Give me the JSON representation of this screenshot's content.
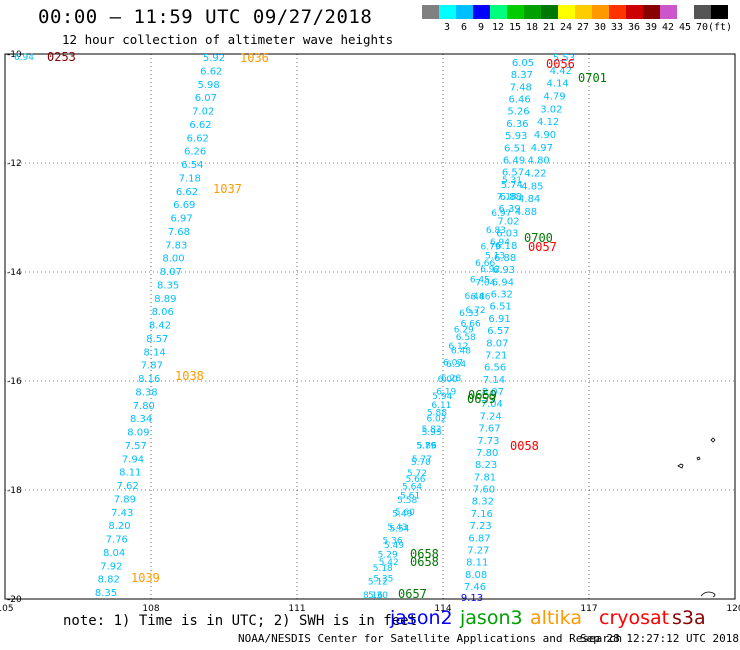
{
  "header": {
    "title": "00:00 – 11:59 UTC 09/27/2018",
    "subtitle": "12 hour collection of altimeter wave heights"
  },
  "legend": {
    "unit": "(ft)",
    "swatches": [
      {
        "color": "#808080",
        "label": ""
      },
      {
        "color": "#00ffff",
        "label": "3"
      },
      {
        "color": "#00bfff",
        "label": "6"
      },
      {
        "color": "#0000ff",
        "label": "9"
      },
      {
        "color": "#00ff7f",
        "label": "12"
      },
      {
        "color": "#00cc00",
        "label": "15"
      },
      {
        "color": "#00a000",
        "label": "18"
      },
      {
        "color": "#007700",
        "label": "21"
      },
      {
        "color": "#ffff00",
        "label": "24"
      },
      {
        "color": "#ffcc00",
        "label": "27"
      },
      {
        "color": "#ff9900",
        "label": "30"
      },
      {
        "color": "#ff3300",
        "label": "33"
      },
      {
        "color": "#cc0000",
        "label": "36"
      },
      {
        "color": "#880000",
        "label": "39"
      },
      {
        "color": "#cc55cc",
        "label": "42"
      },
      {
        "color": "#ffffff",
        "label": "45"
      },
      {
        "color": "#555555",
        "label": "70"
      },
      {
        "color": "#000000",
        "label": ""
      }
    ]
  },
  "map": {
    "lat_labels": [
      "-10",
      "-12",
      "-14",
      "-16",
      "-18",
      "-20"
    ],
    "lon_labels": [
      "105",
      "108",
      "111",
      "114",
      "117",
      "120"
    ]
  },
  "tracks": {
    "track_a": {
      "color": "#00bfff",
      "values": [
        "5.92",
        "6.62",
        "5.98",
        "6.07",
        "7.02",
        "6.62",
        "6.62",
        "6.26",
        "6.54",
        "7.18",
        "6.62",
        "6.69",
        "6.97",
        "7.68",
        "7.83",
        "8.00",
        "8.07",
        "8.35",
        "8.89",
        "8.06",
        "8.42",
        "8.57",
        "8.14",
        "7.87",
        "8.16",
        "8.38",
        "7.80",
        "8.34",
        "8.09",
        "7.57",
        "7.94",
        "8.11",
        "7.62",
        "7.89",
        "7.43",
        "8.20",
        "7.76",
        "8.04",
        "7.92",
        "8.82",
        "8.35"
      ]
    },
    "track_b": {
      "color": "#00bfff",
      "values": [
        "6.05",
        "8.37",
        "7.48",
        "6.46",
        "5.26",
        "6.36",
        "5.93",
        "6.51",
        "6.49",
        "6.57",
        "5.74",
        "6.88",
        "6.39",
        "7.02",
        "6.03",
        "6.18",
        "6.88",
        "6.93",
        "6.94",
        "6.32",
        "6.51",
        "6.91",
        "6.57",
        "8.07",
        "7.21",
        "6.56",
        "7.14",
        "8.07",
        "7.04",
        "7.24",
        "7.67",
        "7.73",
        "7.80",
        "8.23",
        "7.81",
        "7.60",
        "8.32",
        "7.16",
        "7.23",
        "6.87",
        "7.27",
        "8.11",
        "8.08",
        "7.46"
      ]
    },
    "track_c": {
      "color": "#00bfff",
      "values": [
        "5.53",
        "4.42",
        "4.14",
        "4.79",
        "3.02",
        "4.12",
        "4.90",
        "4.97",
        "4.80",
        "4.22",
        "4.85",
        "4.84",
        "4.88"
      ]
    },
    "track_d": {
      "color": "#00bfff",
      "values": [
        "5.31",
        "7.18",
        "6.97",
        "6.83",
        "6.79",
        "6.66",
        "6.45",
        "6.44",
        "6.33",
        "6.29",
        "6.12",
        "6.07",
        "6.00",
        "5.94",
        "5.88",
        "5.82",
        "5.79",
        "5.70",
        "5.66",
        "5.61",
        "5.60",
        "5.54",
        "5.49",
        "5.42",
        "5.35",
        "5.30"
      ]
    },
    "track_e": {
      "color": "#00bfff",
      "values": [
        "6.94",
        "5.13",
        "6.92",
        "7.04",
        "6.86",
        "6.72",
        "6.66",
        "6.58",
        "6.48",
        "6.34",
        "6.28",
        "6.19",
        "6.11",
        "6.02",
        "5.93",
        "5.86",
        "5.77",
        "5.72",
        "5.64",
        "5.58",
        "5.49",
        "5.43",
        "5.36",
        "5.29",
        "5.18",
        "5.12",
        "8.16"
      ]
    },
    "track_f": {
      "color": "#0000ff",
      "values": [
        "9.13"
      ]
    },
    "left_edge_value": "6.94"
  },
  "time_labels": [
    {
      "text": "0253",
      "color": "#880000"
    },
    {
      "text": "1036",
      "color": "#ff9900"
    },
    {
      "text": "0056",
      "color": "#ff0000"
    },
    {
      "text": "0701",
      "color": "#007700"
    },
    {
      "text": "1037",
      "color": "#ff9900"
    },
    {
      "text": "0700",
      "color": "#007700"
    },
    {
      "text": "0057",
      "color": "#ff0000"
    },
    {
      "text": "1038",
      "color": "#ff9900"
    },
    {
      "text": "0659",
      "color": "#007700"
    },
    {
      "text": "0058",
      "color": "#ff0000"
    },
    {
      "text": "0658",
      "color": "#007700"
    },
    {
      "text": "1039",
      "color": "#ff9900"
    },
    {
      "text": "0657",
      "color": "#007700"
    }
  ],
  "footer": {
    "note": "note:  1) Time is in UTC; 2) SWH is in feet",
    "satellites": [
      {
        "name": "jason2",
        "color": "#0000ff"
      },
      {
        "name": "jason3",
        "color": "#00a000"
      },
      {
        "name": "altika",
        "color": "#ff9900"
      },
      {
        "name": "cryosat",
        "color": "#ff0000"
      },
      {
        "name": "s3a",
        "color": "#880000"
      }
    ],
    "credit": "NOAA/NESDIS Center for Satellite Applications and Research",
    "timestamp": "Sep 28 12:27:12 UTC 2018"
  }
}
